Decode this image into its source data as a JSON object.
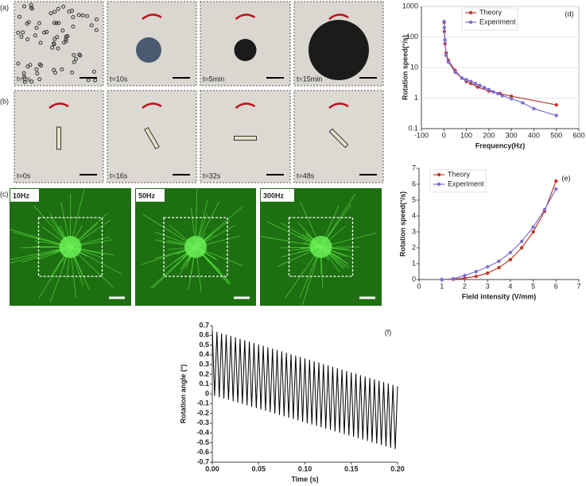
{
  "panels": [
    {
      "label": "(a)",
      "captions": [
        "t=0s",
        "t=10s",
        "t=5min",
        "t=15min"
      ]
    },
    {
      "label": "(b)",
      "captions": [
        "t=0s",
        "t=16s",
        "t=32s",
        "t=48s"
      ]
    },
    {
      "label": "(c)",
      "captions": [
        "10Hz",
        "50Hz",
        "300Hz"
      ]
    }
  ],
  "chart_data": [
    {
      "type": "line",
      "panel_label": "(d)",
      "x_label": "Frequency(Hz)",
      "y_label": "Rotation speed(°/s)",
      "xlim": [
        -100,
        600
      ],
      "xticks": [
        -100,
        0,
        100,
        200,
        300,
        400,
        500,
        600
      ],
      "ylim": [
        0.1,
        1000
      ],
      "yticks": [
        0.1,
        1,
        10,
        100,
        1000
      ],
      "log_y": true,
      "grid": true,
      "markers": true,
      "legend": "upper right",
      "series": [
        {
          "name": "Theory",
          "color": "#c0392b",
          "x": [
            1,
            2,
            5,
            10,
            20,
            50,
            80,
            100,
            120,
            150,
            200,
            250,
            300,
            500
          ],
          "values": [
            300,
            150,
            60,
            30,
            17,
            8,
            4.5,
            3.5,
            3,
            2.3,
            1.7,
            1.4,
            1.15,
            0.6
          ]
        },
        {
          "name": "Experiment",
          "color": "#7b6fd0",
          "x": [
            1,
            2,
            5,
            10,
            20,
            50,
            80,
            100,
            120,
            140,
            160,
            180,
            200,
            220,
            240,
            260,
            300,
            350,
            400,
            500
          ],
          "values": [
            320,
            200,
            80,
            25,
            15,
            7,
            4.5,
            4,
            3.5,
            3,
            2.6,
            2.2,
            1.9,
            1.6,
            1.4,
            1.2,
            0.95,
            0.7,
            0.45,
            0.27
          ]
        }
      ]
    },
    {
      "type": "line",
      "panel_label": "(e)",
      "x_label": "Field intensity (V/mm)",
      "y_label": "Rotation speed(°/s)",
      "xlim": [
        0,
        7
      ],
      "xticks": [
        0,
        1,
        2,
        3,
        4,
        5,
        6,
        7
      ],
      "ylim": [
        0,
        7
      ],
      "yticks": [
        0,
        1,
        2,
        3,
        4,
        5,
        6,
        7
      ],
      "grid": false,
      "markers": true,
      "legend": "upper left",
      "series": [
        {
          "name": "Theory",
          "color": "#c0392b",
          "x": [
            1,
            1.5,
            2,
            2.5,
            3,
            3.5,
            4,
            4.5,
            5,
            5.5,
            6
          ],
          "values": [
            0,
            0.02,
            0.08,
            0.2,
            0.4,
            0.75,
            1.25,
            2,
            3,
            4.3,
            6.2
          ]
        },
        {
          "name": "Experiment",
          "color": "#7b6fd0",
          "x": [
            1,
            1.5,
            2,
            2.5,
            3,
            3.5,
            4,
            4.5,
            5,
            5.5,
            6
          ],
          "values": [
            0,
            0.05,
            0.25,
            0.5,
            0.8,
            1.15,
            1.7,
            2.4,
            3.3,
            4.4,
            5.7
          ]
        }
      ]
    },
    {
      "type": "line",
      "panel_label": "(f)",
      "x_label": "Time (s)",
      "y_label": "Rotation angle (°)",
      "xlim": [
        0,
        0.2
      ],
      "xticks": [
        {
          "value": 0,
          "label": "0.00"
        },
        {
          "value": 0.05,
          "label": "0.05"
        },
        {
          "value": 0.1,
          "label": "0.10"
        },
        {
          "value": 0.15,
          "label": "0.15"
        },
        {
          "value": 0.2,
          "label": "0.20"
        }
      ],
      "ylim": [
        -0.7,
        0.7
      ],
      "yticks": [
        -0.7,
        -0.6,
        -0.5,
        -0.4,
        -0.3,
        -0.2,
        -0.1,
        0,
        0.1,
        0.2,
        0.3,
        0.4,
        0.5,
        0.6,
        0.7
      ],
      "grid": false,
      "markers": false,
      "color": "#000000",
      "x": [
        0,
        0.0025,
        0.005,
        0.0075,
        0.01,
        0.0125,
        0.015,
        0.0175,
        0.02,
        0.0225,
        0.025,
        0.0275,
        0.03,
        0.0325,
        0.035,
        0.0375,
        0.04,
        0.0425,
        0.045,
        0.0475,
        0.05,
        0.0525,
        0.055,
        0.0575,
        0.06,
        0.0625,
        0.065,
        0.0675,
        0.07,
        0.0725,
        0.075,
        0.0775,
        0.08,
        0.0825,
        0.085,
        0.0875,
        0.09,
        0.0925,
        0.095,
        0.0975,
        0.1,
        0.1025,
        0.105,
        0.1075,
        0.11,
        0.1125,
        0.115,
        0.1175,
        0.12,
        0.1225,
        0.125,
        0.1275,
        0.13,
        0.1325,
        0.135,
        0.1375,
        0.14,
        0.1425,
        0.145,
        0.1475,
        0.15,
        0.1525,
        0.155,
        0.1575,
        0.16,
        0.1625,
        0.165,
        0.1675,
        0.17,
        0.1725,
        0.175,
        0.1775,
        0.18,
        0.1825,
        0.185,
        0.1875,
        0.19,
        0.1925,
        0.195,
        0.1975,
        0.2
      ],
      "values": [
        0.65,
        -0.02,
        0.636,
        -0.034,
        0.621,
        -0.048,
        0.607,
        -0.062,
        0.593,
        -0.076,
        0.579,
        -0.09,
        0.564,
        -0.104,
        0.55,
        -0.118,
        0.536,
        -0.132,
        0.521,
        -0.146,
        0.507,
        -0.16,
        0.493,
        -0.174,
        0.478,
        -0.188,
        0.464,
        -0.202,
        0.45,
        -0.216,
        0.436,
        -0.23,
        0.421,
        -0.244,
        0.407,
        -0.258,
        0.393,
        -0.272,
        0.378,
        -0.286,
        0.364,
        -0.3,
        0.35,
        -0.314,
        0.335,
        -0.328,
        0.321,
        -0.342,
        0.307,
        -0.356,
        0.293,
        -0.37,
        0.278,
        -0.384,
        0.264,
        -0.398,
        0.25,
        -0.412,
        0.235,
        -0.426,
        0.221,
        -0.44,
        0.207,
        -0.454,
        0.192,
        -0.468,
        0.178,
        -0.482,
        0.164,
        -0.496,
        0.15,
        -0.51,
        0.135,
        -0.524,
        0.121,
        -0.538,
        0.107,
        -0.552,
        0.092,
        -0.566,
        0.078
      ]
    }
  ]
}
